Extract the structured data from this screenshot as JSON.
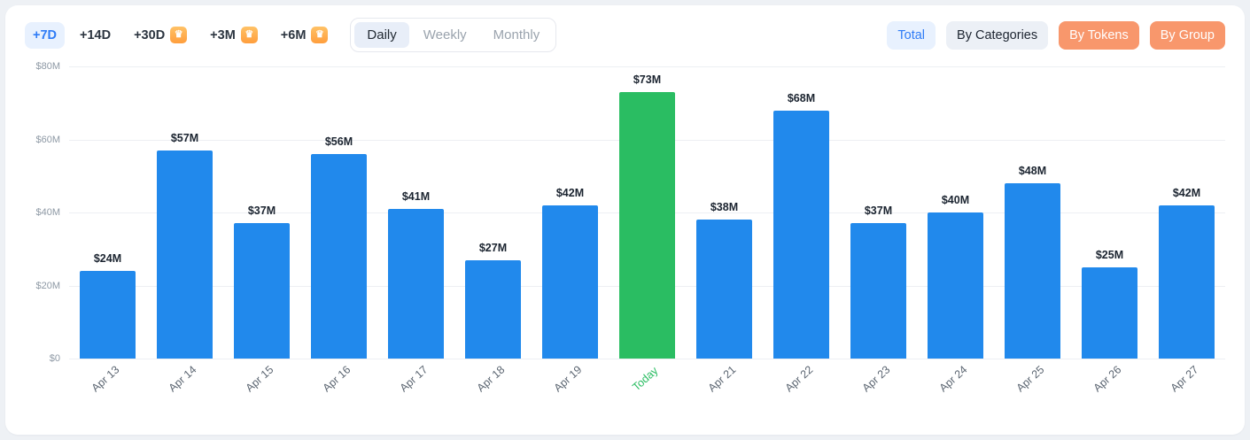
{
  "icons": {
    "crown": "♛"
  },
  "toolbar": {
    "ranges": [
      {
        "label": "+7D",
        "active": true,
        "premium": false
      },
      {
        "label": "+14D",
        "active": false,
        "premium": false
      },
      {
        "label": "+30D",
        "active": false,
        "premium": true
      },
      {
        "label": "+3M",
        "active": false,
        "premium": true
      },
      {
        "label": "+6M",
        "active": false,
        "premium": true
      }
    ],
    "granularity": [
      {
        "label": "Daily",
        "active": true
      },
      {
        "label": "Weekly",
        "active": false
      },
      {
        "label": "Monthly",
        "active": false
      }
    ],
    "views": [
      {
        "label": "Total",
        "style": "blue"
      },
      {
        "label": "By Categories",
        "style": "neutral"
      },
      {
        "label": "By Tokens",
        "style": "orange"
      },
      {
        "label": "By Group",
        "style": "orange"
      }
    ]
  },
  "chart_data": {
    "type": "bar",
    "title": "",
    "categories": [
      "Apr 13",
      "Apr 14",
      "Apr 15",
      "Apr 16",
      "Apr 17",
      "Apr 18",
      "Apr 19",
      "Today",
      "Apr 21",
      "Apr 22",
      "Apr 23",
      "Apr 24",
      "Apr 25",
      "Apr 26",
      "Apr 27"
    ],
    "values": [
      24,
      57,
      37,
      56,
      41,
      27,
      42,
      73,
      38,
      68,
      37,
      40,
      48,
      25,
      42
    ],
    "labels": [
      "$24M",
      "$57M",
      "$37M",
      "$56M",
      "$41M",
      "$27M",
      "$42M",
      "$73M",
      "$38M",
      "$68M",
      "$37M",
      "$40M",
      "$48M",
      "$25M",
      "$42M"
    ],
    "highlight_index": 7,
    "yticks": [
      "$80M",
      "$60M",
      "$40M",
      "$20M",
      "$0"
    ],
    "ylim": [
      0,
      80
    ],
    "grid": true,
    "bar_color": "#2189ec",
    "highlight_color": "#2abd62"
  }
}
